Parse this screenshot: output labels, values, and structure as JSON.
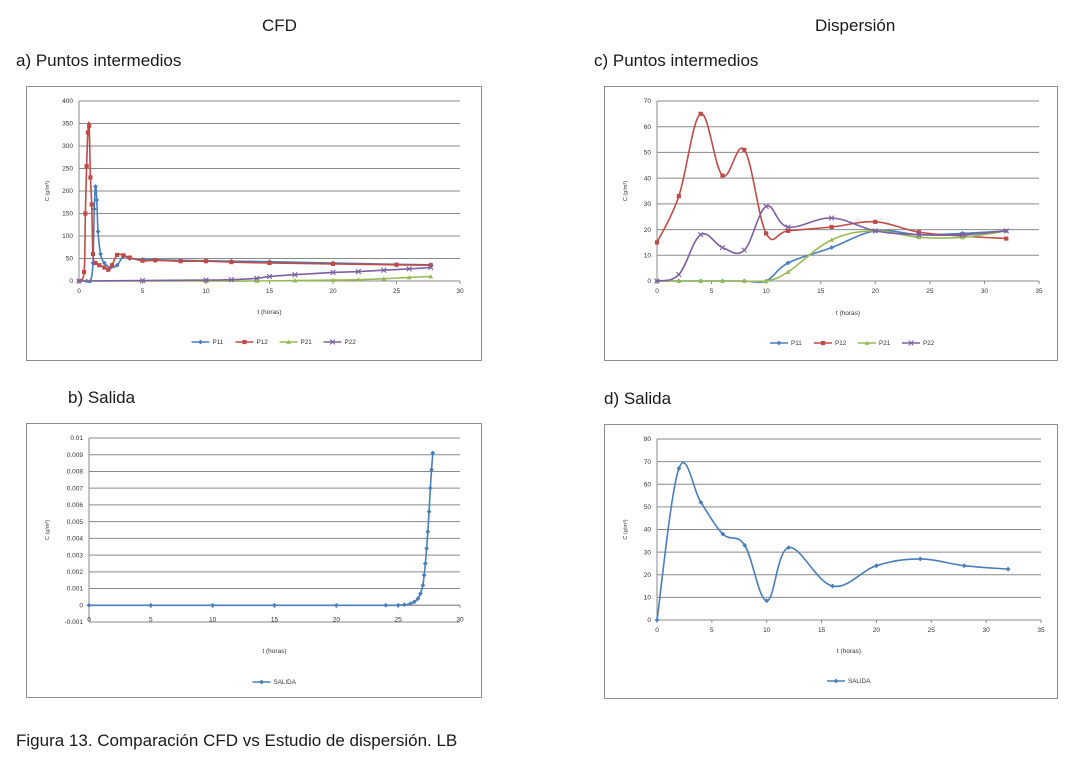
{
  "columns": {
    "left": "CFD",
    "right": "Dispersión"
  },
  "caption": "Figura 13. Comparación CFD vs Estudio de dispersión. LB",
  "charts": [
    {
      "panel_title": "a) Puntos intermedios",
      "type": "line",
      "xlabel": "t (horas)",
      "ylabel": "C (g/m³)",
      "xlim": [
        0,
        30
      ],
      "ylim": [
        0,
        400
      ],
      "xticks": [
        "0",
        "5",
        "10",
        "15",
        "20",
        "25",
        "30"
      ],
      "yticks": [
        "0",
        "50",
        "100",
        "150",
        "200",
        "250",
        "300",
        "350",
        "400"
      ],
      "grid": true,
      "legend": "bottom",
      "series": [
        {
          "name": "P11",
          "color": "#4a7ebb",
          "marker": "diamond",
          "x": [
            0,
            0.6,
            0.9,
            1.1,
            1.2,
            1.3,
            1.4,
            1.5,
            1.7,
            2,
            2.5,
            3,
            3.5,
            4,
            5,
            6,
            8,
            10,
            12,
            15,
            20,
            25,
            27.7
          ],
          "y": [
            0,
            0,
            0,
            40,
            160,
            210,
            180,
            110,
            60,
            40,
            30,
            35,
            55,
            50,
            48,
            47,
            46,
            45,
            44,
            43,
            40,
            37,
            36
          ]
        },
        {
          "name": "P12",
          "color": "#be4b48",
          "marker": "square",
          "x": [
            0,
            0.4,
            0.5,
            0.6,
            0.7,
            0.8,
            0.9,
            1,
            1.1,
            1.3,
            1.6,
            2,
            2.3,
            2.6,
            3,
            3.5,
            4,
            5,
            6,
            8,
            10,
            12,
            15,
            20,
            25,
            27.7
          ],
          "y": [
            0,
            20,
            150,
            255,
            330,
            345,
            230,
            170,
            60,
            40,
            35,
            30,
            25,
            35,
            58,
            57,
            52,
            45,
            46,
            44,
            44,
            42,
            40,
            38,
            36,
            35
          ]
        },
        {
          "name": "P21",
          "color": "#98b954",
          "marker": "triangle",
          "x": [
            0,
            10,
            14,
            17,
            20,
            22,
            24,
            26,
            27.7
          ],
          "y": [
            0,
            0,
            0,
            1,
            2,
            3,
            5,
            8,
            10
          ]
        },
        {
          "name": "P22",
          "color": "#7d60a0",
          "marker": "x",
          "x": [
            0,
            5,
            10,
            12,
            14,
            15,
            17,
            20,
            22,
            24,
            26,
            27.7
          ],
          "y": [
            0,
            1,
            2,
            3,
            6,
            10,
            14,
            19,
            21,
            24,
            27,
            30
          ]
        }
      ]
    },
    {
      "panel_title": "b) Salida",
      "type": "line",
      "xlabel": "t (horas)",
      "ylabel": "C (g/m³)",
      "xlim": [
        0,
        30
      ],
      "ylim": [
        -0.001,
        0.01
      ],
      "xticks": [
        "0",
        "5",
        "10",
        "15",
        "20",
        "25",
        "30"
      ],
      "yticks": [
        "-0.001",
        "0",
        "0.001",
        "0.002",
        "0.003",
        "0.004",
        "0.005",
        "0.006",
        "0.007",
        "0.008",
        "0.009",
        "0.01"
      ],
      "grid": true,
      "legend": "bottom",
      "series": [
        {
          "name": "SALIDA",
          "color": "#4a7ebb",
          "marker": "diamond",
          "x": [
            0,
            5,
            10,
            15,
            20,
            24,
            25,
            25.5,
            26,
            26.3,
            26.6,
            26.8,
            27,
            27.1,
            27.2,
            27.3,
            27.4,
            27.5,
            27.6,
            27.7,
            27.8
          ],
          "y": [
            0,
            0,
            0,
            0,
            0,
            0,
            0,
            3e-05,
            0.0001,
            0.0002,
            0.0004,
            0.0007,
            0.0012,
            0.0018,
            0.0025,
            0.0034,
            0.0044,
            0.0056,
            0.007,
            0.0081,
            0.0091
          ]
        }
      ]
    },
    {
      "panel_title": "c) Puntos intermedios",
      "type": "line",
      "xlabel": "t (horas)",
      "ylabel": "C (g/m³)",
      "xlim": [
        0,
        35
      ],
      "ylim": [
        0,
        70
      ],
      "xticks": [
        "0",
        "5",
        "10",
        "15",
        "20",
        "25",
        "30",
        "35"
      ],
      "yticks": [
        "0",
        "10",
        "20",
        "30",
        "40",
        "50",
        "60",
        "70"
      ],
      "grid": true,
      "legend": "bottom",
      "series": [
        {
          "name": "P11",
          "color": "#4a7ebb",
          "marker": "diamond",
          "x": [
            0,
            2,
            4,
            6,
            8,
            10,
            12,
            16,
            20,
            24,
            28,
            32
          ],
          "y": [
            0,
            0,
            0,
            0,
            0,
            0,
            7,
            13,
            19.5,
            18,
            18.5,
            19.5
          ]
        },
        {
          "name": "P12",
          "color": "#be4b48",
          "marker": "square",
          "x": [
            0,
            2,
            4,
            6,
            8,
            10,
            12,
            16,
            20,
            24,
            28,
            32
          ],
          "y": [
            15,
            33,
            65,
            41,
            51,
            18.5,
            19.5,
            21,
            23,
            19,
            17.5,
            16.5
          ]
        },
        {
          "name": "P21",
          "color": "#98b954",
          "marker": "triangle",
          "x": [
            0,
            2,
            4,
            6,
            8,
            10,
            12,
            16,
            20,
            24,
            28,
            32
          ],
          "y": [
            0,
            0,
            0,
            0,
            0,
            0,
            3.5,
            16,
            19.5,
            17,
            17,
            19.5
          ]
        },
        {
          "name": "P22",
          "color": "#7d60a0",
          "marker": "x",
          "x": [
            0,
            2,
            4,
            6,
            8,
            10,
            12,
            16,
            20,
            24,
            28,
            32
          ],
          "y": [
            0,
            2.5,
            18,
            13,
            12,
            29,
            21,
            24.5,
            19.5,
            18,
            18,
            19.5
          ]
        }
      ]
    },
    {
      "panel_title": "d) Salida",
      "type": "line",
      "xlabel": "t (horas)",
      "ylabel": "C (g/m³)",
      "xlim": [
        0,
        35
      ],
      "ylim": [
        0,
        80
      ],
      "xticks": [
        "0",
        "5",
        "10",
        "15",
        "20",
        "25",
        "30",
        "35"
      ],
      "yticks": [
        "0",
        "10",
        "20",
        "30",
        "40",
        "50",
        "60",
        "70",
        "80"
      ],
      "grid": true,
      "legend": "bottom",
      "series": [
        {
          "name": "SALIDA",
          "color": "#4a7ebb",
          "marker": "diamond",
          "x": [
            0,
            2,
            4,
            6,
            8,
            10,
            12,
            16,
            20,
            24,
            28,
            32
          ],
          "y": [
            0,
            67,
            52,
            38,
            33,
            8.5,
            32,
            15,
            24,
            27,
            24,
            22.5
          ]
        }
      ]
    }
  ]
}
